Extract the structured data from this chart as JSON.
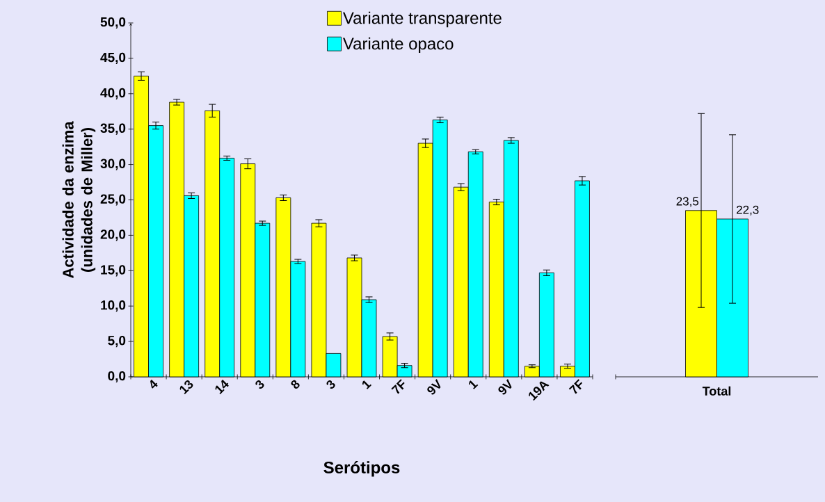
{
  "chart_data": [
    {
      "type": "bar",
      "xlabel": "Serótipos",
      "ylabel": "Actividade da enzima (unidades de Miller)",
      "categories": [
        "4",
        "13",
        "14",
        "3",
        "8",
        "3",
        "1",
        "7F",
        "9V",
        "1",
        "9V",
        "19A",
        "7F"
      ],
      "ylim": [
        0,
        50
      ],
      "yticks": [
        {
          "value": 0,
          "label": "0,0"
        },
        {
          "value": 5,
          "label": "5,0"
        },
        {
          "value": 10,
          "label": "10,0"
        },
        {
          "value": 15,
          "label": "15,0"
        },
        {
          "value": 20,
          "label": "20,0"
        },
        {
          "value": 25,
          "label": "25,0"
        },
        {
          "value": 30,
          "label": "30,0"
        },
        {
          "value": 35,
          "label": "35,0"
        },
        {
          "value": 40,
          "label": "40,0"
        },
        {
          "value": 45,
          "label": "45,0"
        },
        {
          "value": 50,
          "label": "50,0"
        }
      ],
      "legend": "top right",
      "series": [
        {
          "name": "Variante transparente",
          "color": "#ffff00",
          "values": [
            42.5,
            38.8,
            37.6,
            30.1,
            25.3,
            21.7,
            16.8,
            5.7,
            33.0,
            26.8,
            24.7,
            1.5,
            1.5
          ],
          "errors": [
            0.6,
            0.4,
            0.9,
            0.7,
            0.4,
            0.5,
            0.4,
            0.5,
            0.6,
            0.5,
            0.4,
            0.2,
            0.3
          ]
        },
        {
          "name": "Variante opaco",
          "color": "#00ffff",
          "values": [
            35.5,
            25.6,
            30.9,
            21.7,
            16.3,
            3.3,
            10.9,
            1.6,
            36.3,
            31.8,
            33.4,
            14.7,
            27.7
          ],
          "errors": [
            0.5,
            0.4,
            0.3,
            0.3,
            0.3,
            null,
            0.4,
            0.3,
            0.4,
            0.3,
            0.4,
            0.4,
            0.6
          ]
        }
      ]
    },
    {
      "type": "bar",
      "categories": [
        "Total"
      ],
      "ylim": [
        0,
        50
      ],
      "tick_labels": "x",
      "series": [
        {
          "color": "#ffff00",
          "values": [
            23.5
          ],
          "errors": [
            13.7
          ],
          "value_labels": [
            "23,5"
          ]
        },
        {
          "color": "#00ffff",
          "values": [
            22.3
          ],
          "errors": [
            11.9
          ],
          "value_labels": [
            "22,3"
          ]
        }
      ]
    }
  ]
}
